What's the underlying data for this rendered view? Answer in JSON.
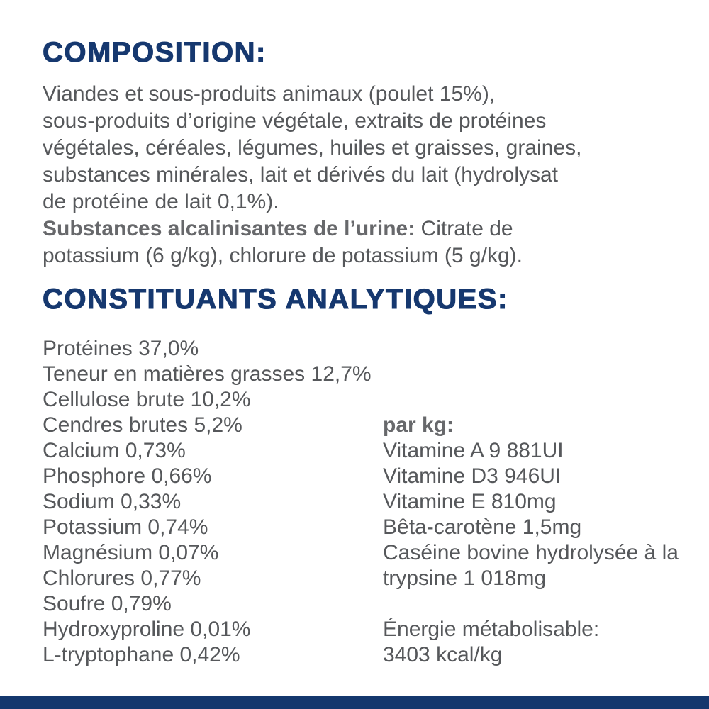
{
  "colors": {
    "heading_navy": "#16386f",
    "body_gray": "#56585b",
    "bottom_bar_navy": "#14376d"
  },
  "composition": {
    "title": "COMPOSITION:",
    "lines": [
      "Viandes et sous-produits animaux (poulet 15%),",
      "sous-produits d’origine végétale, extraits de protéines",
      "végétales, céréales, légumes, huiles et graisses, graines,",
      "substances minérales, lait et dérivés du lait (hydrolysat",
      "de protéine de lait 0,1%)."
    ],
    "substances_label": "Substances alcalinisantes de l’urine:",
    "substances_rest_line1": "Citrate de",
    "substances_line2": "potassium (6 g/kg), chlorure de potassium (5 g/kg)."
  },
  "analytics": {
    "title": "CONSTITUANTS ANALYTIQUES:",
    "left_items": [
      "Protéines 37,0%",
      "Teneur en matières grasses 12,7%",
      "Cellulose brute 10,2%",
      "Cendres brutes 5,2%",
      "Calcium 0,73%",
      "Phosphore 0,66%",
      "Sodium 0,33%",
      "Potassium 0,74%",
      "Magnésium 0,07%",
      "Chlorures 0,77%",
      "Soufre 0,79%",
      "Hydroxyproline 0,01%",
      "L-tryptophane 0,42%"
    ],
    "per_kg_label": "par kg:",
    "per_kg_items": [
      "Vitamine A 9 881UI",
      "Vitamine D3 946UI",
      "Vitamine E 810mg",
      "Bêta-carotène 1,5mg",
      "Caséine bovine hydrolysée à la trypsine 1 018mg"
    ],
    "energy_label": "Énergie métabolisable:",
    "energy_value": "3403 kcal/kg"
  }
}
